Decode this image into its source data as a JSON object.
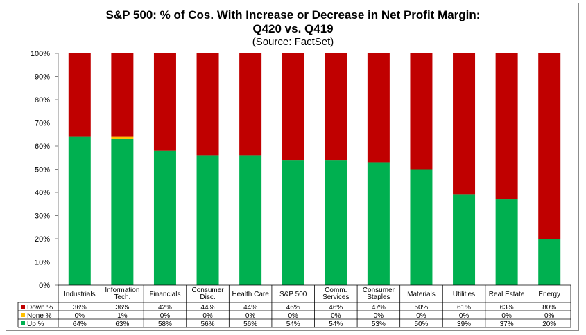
{
  "chart_data": {
    "type": "bar",
    "stacked": true,
    "title": "S&P 500: % of Cos. With Increase or Decrease in Net Profit Margin:",
    "title_line2": "Q420 vs. Q419",
    "subtitle": "(Source: FactSet)",
    "categories": [
      [
        "Industrials"
      ],
      [
        "Information",
        "Tech."
      ],
      [
        "Financials"
      ],
      [
        "Consumer",
        "Disc."
      ],
      [
        "Health Care"
      ],
      [
        "S&P 500"
      ],
      [
        "Comm.",
        "Services"
      ],
      [
        "Consumer",
        "Staples"
      ],
      [
        "Materials"
      ],
      [
        "Utilities"
      ],
      [
        "Real Estate"
      ],
      [
        "Energy"
      ]
    ],
    "series": [
      {
        "name": "Down %",
        "color": "#c00000",
        "values": [
          36,
          36,
          42,
          44,
          44,
          46,
          46,
          47,
          50,
          61,
          63,
          80
        ]
      },
      {
        "name": "None %",
        "color": "#ffc000",
        "values": [
          0,
          1,
          0,
          0,
          0,
          0,
          0,
          0,
          0,
          0,
          0,
          0
        ]
      },
      {
        "name": "Up %",
        "color": "#00b050",
        "values": [
          64,
          63,
          58,
          56,
          56,
          54,
          54,
          53,
          50,
          39,
          37,
          20
        ]
      }
    ],
    "value_suffix": "%",
    "ylim": [
      0,
      100
    ],
    "yticks": [
      "0%",
      "10%",
      "20%",
      "30%",
      "40%",
      "50%",
      "60%",
      "70%",
      "80%",
      "90%",
      "100%"
    ],
    "grid": false,
    "legend": "data-table"
  }
}
